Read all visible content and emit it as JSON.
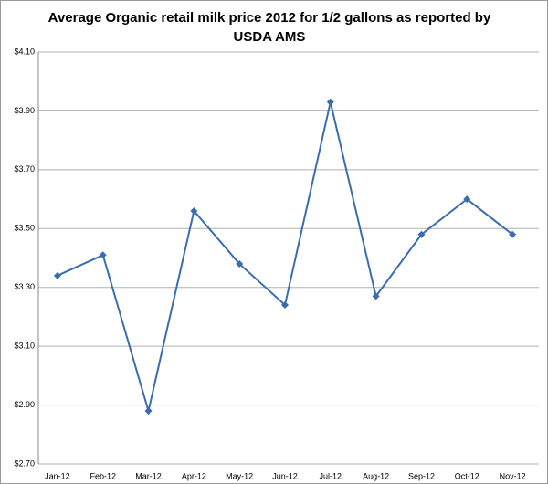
{
  "chart_data": {
    "type": "line",
    "title": [
      "Average Organic retail milk price 2012  for 1/2 gallons as reported by",
      "USDA AMS"
    ],
    "categories": [
      "Jan-12",
      "Feb-12",
      "Mar-12",
      "Apr-12",
      "May-12",
      "Jun-12",
      "Jul-12",
      "Aug-12",
      "Sep-12",
      "Oct-12",
      "Nov-12"
    ],
    "values": [
      3.34,
      3.41,
      2.88,
      3.56,
      3.38,
      3.24,
      3.93,
      3.27,
      3.48,
      3.6,
      3.48
    ],
    "color": "#3a6db0",
    "ylim": [
      2.7,
      4.1
    ],
    "yticks": [
      {
        "value": 2.7,
        "label": "$2.70"
      },
      {
        "value": 2.9,
        "label": "$2.90"
      },
      {
        "value": 3.1,
        "label": "$3.10"
      },
      {
        "value": 3.3,
        "label": "$3.30"
      },
      {
        "value": 3.5,
        "label": "$3.50"
      },
      {
        "value": 3.7,
        "label": "$3.70"
      },
      {
        "value": 3.9,
        "label": "$3.90"
      },
      {
        "value": 4.1,
        "label": "$4.10"
      }
    ],
    "grid": true
  }
}
